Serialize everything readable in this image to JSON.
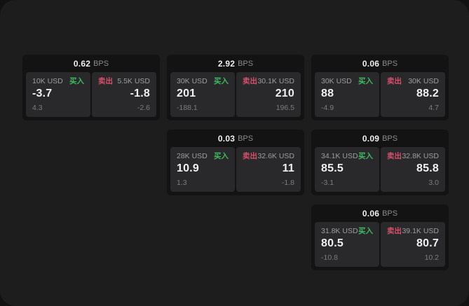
{
  "colors": {
    "backdrop": "#121212",
    "window_bg": "#1d1d1e",
    "card_bg": "#131314",
    "panel_bg": "#29292b",
    "buy_green": "#3dbb5f",
    "sell_red": "#d5506b",
    "text_primary": "#f0f0f0",
    "text_secondary": "#9d9d9d",
    "text_muted": "#7d7d7d"
  },
  "labels": {
    "bps_unit": "BPS",
    "buy": "买入",
    "sell": "卖出"
  },
  "cards": [
    {
      "bps": "0.62",
      "buy": {
        "amount": "10K USD",
        "price": "-3.7",
        "delta": "4.3"
      },
      "sell": {
        "amount": "5.5K USD",
        "price": "-1.8",
        "delta": "-2.6"
      }
    },
    {
      "bps": "2.92",
      "buy": {
        "amount": "30K USD",
        "price": "201",
        "delta": "-188.1"
      },
      "sell": {
        "amount": "30.1K USD",
        "price": "210",
        "delta": "196.5"
      }
    },
    {
      "bps": "0.06",
      "buy": {
        "amount": "30K USD",
        "price": "88",
        "delta": "-4.9"
      },
      "sell": {
        "amount": "30K USD",
        "price": "88.2",
        "delta": "4.7"
      }
    },
    {
      "bps": "0.03",
      "buy": {
        "amount": "28K USD",
        "price": "10.9",
        "delta": "1.3"
      },
      "sell": {
        "amount": "32.6K USD",
        "price": "11",
        "delta": "-1.8"
      }
    },
    {
      "bps": "0.09",
      "buy": {
        "amount": "34.1K USD",
        "price": "85.5",
        "delta": "-3.1"
      },
      "sell": {
        "amount": "32.8K USD",
        "price": "85.8",
        "delta": "3.0"
      }
    },
    {
      "bps": "0.06",
      "buy": {
        "amount": "31.8K USD",
        "price": "80.5",
        "delta": "-10.8"
      },
      "sell": {
        "amount": "39.1K USD",
        "price": "80.7",
        "delta": "10.2"
      }
    }
  ]
}
